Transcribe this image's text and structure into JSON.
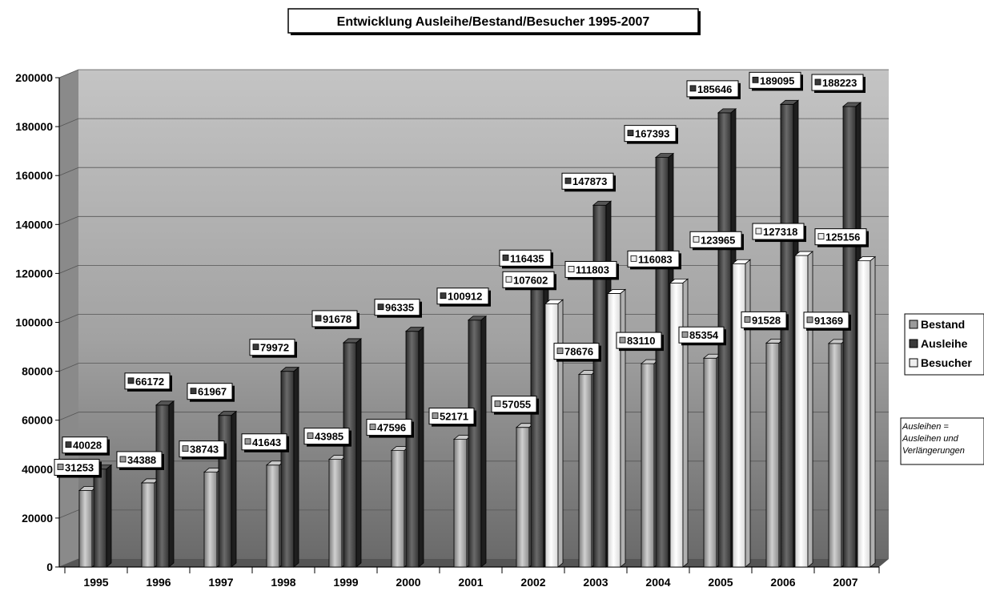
{
  "chart_data": {
    "type": "bar",
    "title": "Entwicklung Ausleihe/Bestand/Besucher 1995-2007",
    "categories": [
      "1995",
      "1996",
      "1997",
      "1998",
      "1999",
      "2000",
      "2001",
      "2002",
      "2003",
      "2004",
      "2005",
      "2006",
      "2007"
    ],
    "series": [
      {
        "name": "Bestand",
        "color": "#9a9a9a",
        "values": [
          31253,
          34388,
          38743,
          41643,
          43985,
          47596,
          52171,
          57055,
          78676,
          83110,
          85354,
          91528,
          91369
        ]
      },
      {
        "name": "Ausleihe",
        "color": "#3a3a3a",
        "values": [
          40028,
          66172,
          61967,
          79972,
          91678,
          96335,
          100912,
          116435,
          147873,
          167393,
          185646,
          189095,
          188223
        ]
      },
      {
        "name": "Besucher",
        "color": "#eeeeee",
        "values": [
          null,
          null,
          null,
          null,
          null,
          null,
          null,
          107602,
          111803,
          116083,
          123965,
          127318,
          125156
        ]
      }
    ],
    "ylim": [
      0,
      200000
    ],
    "yticks": [
      0,
      20000,
      40000,
      60000,
      80000,
      100000,
      120000,
      140000,
      160000,
      180000,
      200000
    ],
    "grid": true,
    "legend_position": "right",
    "note": "Ausleihen = Ausleihen und Verlängerungen"
  }
}
